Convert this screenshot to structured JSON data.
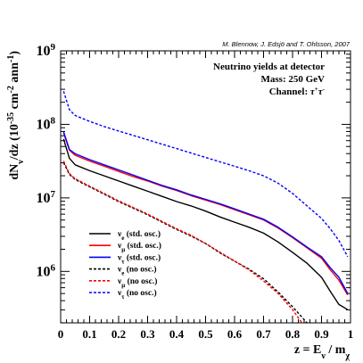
{
  "chart_data": {
    "type": "line",
    "credit": "M. Blennow, J. Edsjö and T. Ohlsson, 2007",
    "annotation": {
      "line1": "Neutrino yields at detector",
      "line2": "Mass: 250 GeV",
      "line3_prefix": "Channel: ",
      "line3_tau": "τ",
      "line3_plus": "+",
      "line3_minus": "-"
    },
    "xlabel": {
      "prefix": "z = E",
      "sub1": "ν",
      "mid": " / m",
      "sub2": "χ"
    },
    "ylabel": {
      "p1": "dN",
      "s1": "ν",
      "p2": "/dz (10",
      "e1": "-35",
      "p3": " cm",
      "e2": "-2",
      "p4": " ann",
      "e3": "-1",
      "p5": ")"
    },
    "xlim": [
      0,
      1
    ],
    "ylim_log10": [
      5.3,
      9.0
    ],
    "log_y": true,
    "x_ticks": [
      {
        "v": 0,
        "label": "0"
      },
      {
        "v": 0.1,
        "label": "0.1"
      },
      {
        "v": 0.2,
        "label": "0.2"
      },
      {
        "v": 0.3,
        "label": "0.3"
      },
      {
        "v": 0.4,
        "label": "0.4"
      },
      {
        "v": 0.5,
        "label": "0.5"
      },
      {
        "v": 0.6,
        "label": "0.6"
      },
      {
        "v": 0.7,
        "label": "0.7"
      },
      {
        "v": 0.8,
        "label": "0.8"
      },
      {
        "v": 0.9,
        "label": "0.9"
      },
      {
        "v": 1.0,
        "label": "1"
      }
    ],
    "y_ticks": [
      {
        "e": 6,
        "base": "10",
        "exp": "6"
      },
      {
        "e": 7,
        "base": "10",
        "exp": "7"
      },
      {
        "e": 8,
        "base": "10",
        "exp": "8"
      },
      {
        "e": 9,
        "base": "10",
        "exp": "9"
      }
    ],
    "x": [
      0.01,
      0.03,
      0.05,
      0.1,
      0.15,
      0.2,
      0.25,
      0.3,
      0.35,
      0.4,
      0.45,
      0.5,
      0.55,
      0.6,
      0.65,
      0.7,
      0.75,
      0.8,
      0.85,
      0.9,
      0.93,
      0.96,
      0.99
    ],
    "series": [
      {
        "name": "ν_e (std. osc.)",
        "sym": "ν",
        "sub": "e",
        "note": " (std. osc.)",
        "color": "#000000",
        "dash": false,
        "log10": [
          7.8,
          7.54,
          7.45,
          7.37,
          7.3,
          7.23,
          7.16,
          7.09,
          7.02,
          6.95,
          6.89,
          6.82,
          6.74,
          6.67,
          6.6,
          6.52,
          6.4,
          6.26,
          6.11,
          5.92,
          5.73,
          5.55,
          5.48
        ]
      },
      {
        "name": "ν_μ (std. osc.)",
        "sym": "ν",
        "sub": "μ",
        "note": " (std. osc.)",
        "color": "#ff0000",
        "dash": false,
        "log10": [
          7.88,
          7.65,
          7.58,
          7.5,
          7.43,
          7.36,
          7.29,
          7.23,
          7.16,
          7.1,
          7.03,
          6.97,
          6.91,
          6.84,
          6.77,
          6.7,
          6.59,
          6.46,
          6.32,
          6.18,
          6.02,
          5.88,
          5.68
        ]
      },
      {
        "name": "ν_τ (std. osc.)",
        "sym": "ν",
        "sub": "τ",
        "note": " (std. osc.)",
        "color": "#0000ff",
        "dash": false,
        "log10": [
          7.9,
          7.66,
          7.6,
          7.52,
          7.45,
          7.38,
          7.31,
          7.24,
          7.17,
          7.11,
          7.04,
          6.98,
          6.92,
          6.85,
          6.78,
          6.71,
          6.6,
          6.47,
          6.33,
          6.2,
          6.05,
          5.92,
          5.7
        ]
      },
      {
        "name": "ν_e (no osc.)",
        "sym": "ν",
        "sub": "e",
        "note": " (no osc.)",
        "color": "#000000",
        "dash": true,
        "log10": [
          7.48,
          7.32,
          7.25,
          7.15,
          7.05,
          6.95,
          6.86,
          6.77,
          6.67,
          6.57,
          6.48,
          6.38,
          6.25,
          6.14,
          6.03,
          5.9,
          5.72,
          5.52,
          5.3,
          5.1,
          5.0,
          4.9,
          4.8
        ]
      },
      {
        "name": "ν_μ (no osc.)",
        "sym": "ν",
        "sub": "μ",
        "note": " (no osc.)",
        "color": "#ff0000",
        "dash": true,
        "log10": [
          7.5,
          7.33,
          7.26,
          7.16,
          7.06,
          6.96,
          6.87,
          6.78,
          6.68,
          6.58,
          6.49,
          6.38,
          6.26,
          6.14,
          6.02,
          5.87,
          5.7,
          5.48,
          5.2,
          5.1,
          5.0,
          4.9,
          4.8
        ]
      },
      {
        "name": "ν_τ (no osc.)",
        "sym": "ν",
        "sub": "τ",
        "note": " (no osc.)",
        "color": "#0000ff",
        "dash": true,
        "log10": [
          8.45,
          8.2,
          8.12,
          8.04,
          7.97,
          7.91,
          7.85,
          7.79,
          7.73,
          7.67,
          7.61,
          7.55,
          7.49,
          7.43,
          7.37,
          7.3,
          7.2,
          7.06,
          6.89,
          6.72,
          6.58,
          6.42,
          6.2
        ]
      }
    ]
  }
}
